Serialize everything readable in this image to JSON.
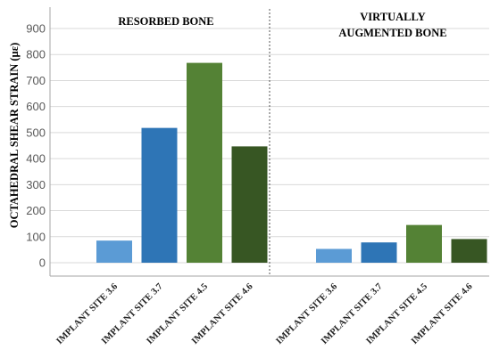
{
  "chart_data": {
    "type": "bar",
    "ylabel": "OCTAHEDRAL SHEAR STRAIN (µε)",
    "ylim": [
      0,
      950
    ],
    "yticks": [
      0,
      100,
      200,
      300,
      400,
      500,
      600,
      700,
      800,
      900
    ],
    "grid": true,
    "groups": [
      {
        "label_lines": [
          "RESORBED BONE"
        ],
        "categories": [
          "IMPLANT SITE 3.6",
          "IMPLANT SITE 3.7",
          "IMPLANT SITE 4.5",
          "IMPLANT SITE 4.6"
        ],
        "values": [
          85,
          518,
          768,
          447
        ],
        "colors": [
          "#5b9bd5",
          "#2e75b6",
          "#548235",
          "#375623"
        ]
      },
      {
        "label_lines": [
          "VIRTUALLY",
          "AUGMENTED BONE"
        ],
        "categories": [
          "IMPLANT SITE 3.6",
          "IMPLANT SITE 3.7",
          "IMPLANT SITE 4.5",
          "IMPLANT SITE 4.6"
        ],
        "values": [
          53,
          78,
          145,
          91
        ],
        "colors": [
          "#5b9bd5",
          "#2e75b6",
          "#548235",
          "#375623"
        ]
      }
    ]
  }
}
